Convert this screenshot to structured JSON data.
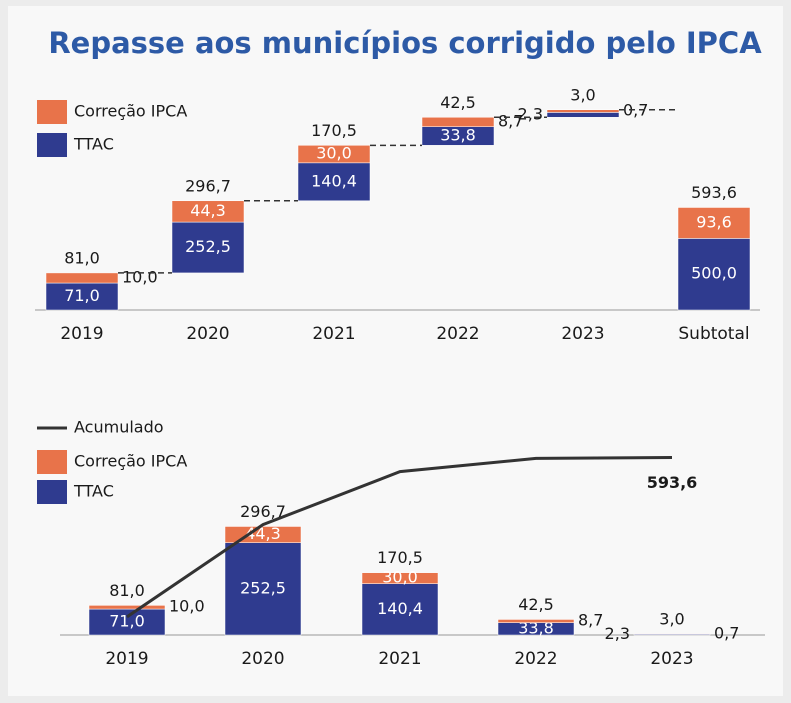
{
  "chart_data": [
    {
      "type": "waterfall",
      "title": "Repasse aos municípios corrigido pelo IPCA",
      "scale": "sqrt",
      "categories": [
        "2019",
        "2020",
        "2021",
        "2022",
        "2023",
        "Subtotal"
      ],
      "series": [
        {
          "name": "Correção IPCA",
          "color": "#e8734a",
          "values": [
            10.0,
            44.3,
            30.0,
            8.7,
            0.7,
            93.6
          ],
          "value_labels": [
            "10,0",
            "44,3",
            "30,0",
            "8,7",
            "0,7",
            "93,6"
          ]
        },
        {
          "name": "TTAC",
          "color": "#2f3b8f",
          "values": [
            71.0,
            252.5,
            140.4,
            33.8,
            2.3,
            500.0
          ],
          "value_labels": [
            "71,0",
            "252,5",
            "140,4",
            "33,8",
            "2,3",
            "500,0"
          ]
        }
      ],
      "totals": [
        81.0,
        296.7,
        170.5,
        42.5,
        3.0,
        593.6
      ],
      "total_labels": [
        "81,0",
        "296,7",
        "170,5",
        "42,5",
        "3,0",
        "593,6"
      ]
    },
    {
      "type": "bar",
      "categories": [
        "2019",
        "2020",
        "2021",
        "2022",
        "2023"
      ],
      "ylim": [
        0,
        320
      ],
      "y2lim": [
        0,
        650
      ],
      "series": [
        {
          "name": "Acumulado",
          "type": "line",
          "axis": "y2",
          "color": "#333333",
          "values": [
            81.0,
            377.7,
            548.2,
            590.7,
            593.6
          ],
          "end_label": "593,6"
        },
        {
          "name": "Correção IPCA",
          "color": "#e8734a",
          "values": [
            10.0,
            44.3,
            30.0,
            8.7,
            0.7
          ],
          "value_labels": [
            "10,0",
            "44,3",
            "30,0",
            "8,7",
            "0,7"
          ]
        },
        {
          "name": "TTAC",
          "color": "#2f3b8f",
          "values": [
            71.0,
            252.5,
            140.4,
            33.8,
            2.3
          ],
          "value_labels": [
            "71,0",
            "252,5",
            "140,4",
            "33,8",
            "2,3"
          ]
        }
      ],
      "totals": [
        81.0,
        296.7,
        170.5,
        42.5,
        3.0
      ],
      "total_labels": [
        "81,0",
        "296,7",
        "170,5",
        "42,5",
        "3,0"
      ]
    }
  ]
}
